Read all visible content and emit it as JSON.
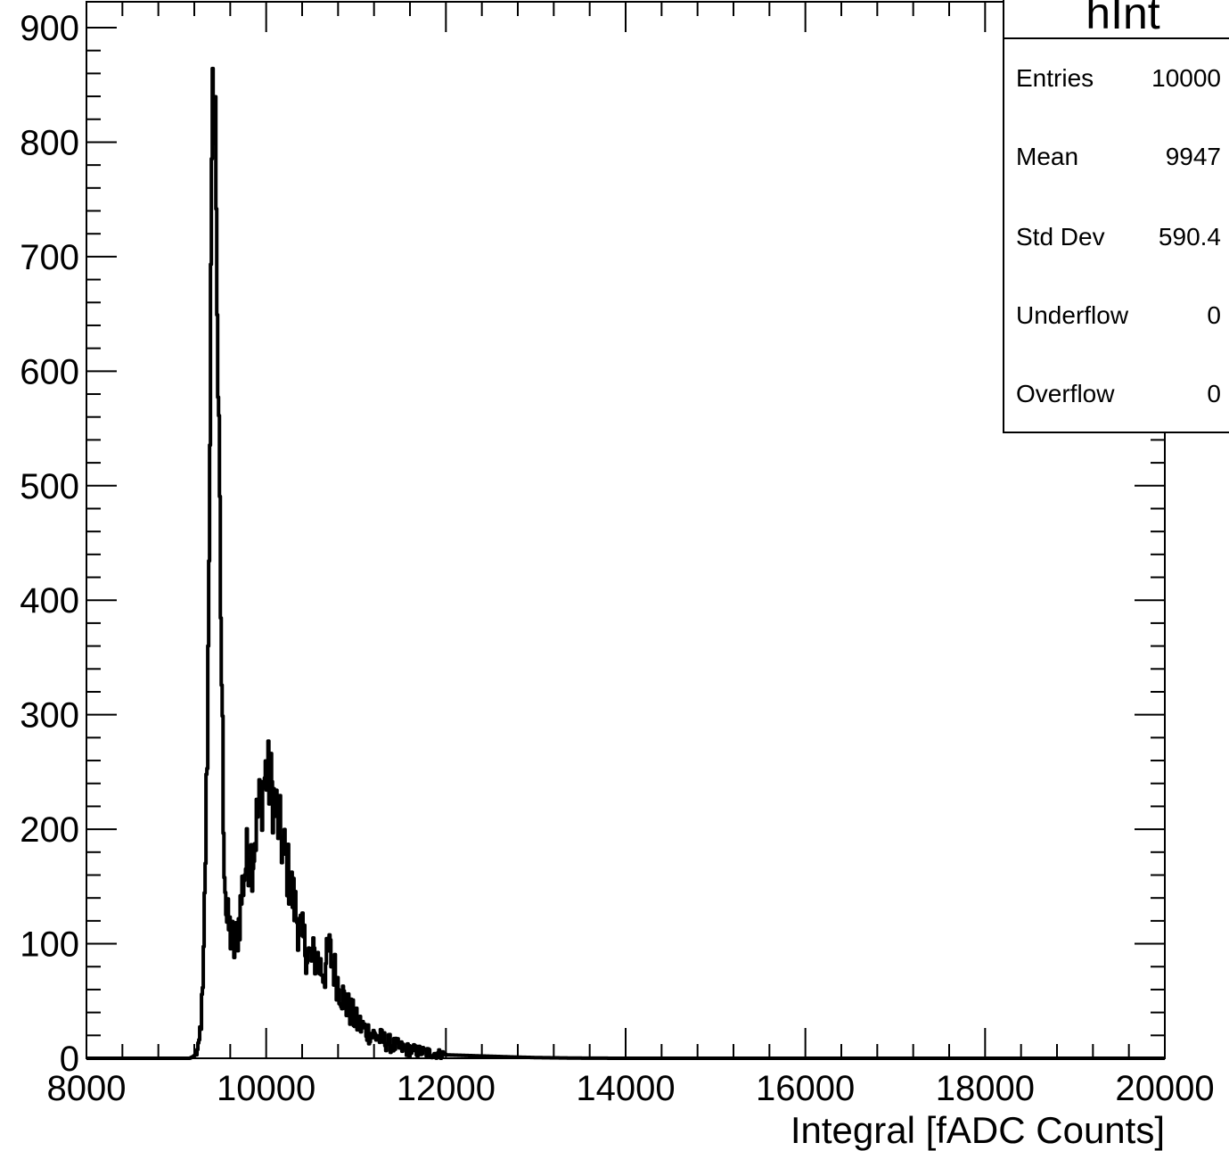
{
  "chart_data": {
    "type": "histogram",
    "title": "",
    "xlabel": "Integral [fADC Counts]",
    "ylabel": "",
    "xlim": [
      8000,
      20000
    ],
    "ylim": [
      0,
      920
    ],
    "x_ticks": [
      "8000",
      "10000",
      "12000",
      "14000",
      "16000",
      "18000",
      "20000"
    ],
    "y_ticks": [
      "0",
      "100",
      "200",
      "300",
      "400",
      "500",
      "600",
      "700",
      "800",
      "900"
    ],
    "grid": false,
    "legend": "none",
    "line_color": "#000000",
    "series": [
      {
        "x": [
          9000,
          9150,
          9200,
          9250,
          9300,
          9350,
          9380,
          9410,
          9440,
          9470,
          9500,
          9530,
          9560,
          9600,
          9650,
          9700,
          9750,
          9800,
          9850,
          9900,
          9950,
          10000,
          10050,
          10100,
          10150,
          10200,
          10250,
          10300,
          10350,
          10400,
          10450,
          10500,
          10550,
          10600,
          10650,
          10700,
          10750,
          10800,
          10850,
          10900,
          10950,
          11000,
          11100,
          11200,
          11300,
          11400,
          11500,
          11600,
          11700,
          11800,
          11900,
          12000,
          12200,
          12400,
          12600,
          12800,
          13000,
          13200,
          13400,
          13600,
          14000,
          20000
        ],
        "y": [
          0,
          0,
          2,
          8,
          60,
          300,
          620,
          860,
          800,
          550,
          360,
          190,
          120,
          110,
          95,
          120,
          160,
          180,
          175,
          210,
          230,
          250,
          240,
          220,
          200,
          180,
          160,
          140,
          120,
          105,
          95,
          85,
          90,
          80,
          75,
          95,
          80,
          65,
          55,
          45,
          40,
          32,
          25,
          20,
          16,
          12,
          9,
          7,
          6,
          5,
          4,
          3,
          2.5,
          2,
          1.5,
          1,
          0.6,
          0.4,
          0.2,
          0.1,
          0,
          0
        ]
      }
    ]
  },
  "stats_box": {
    "title": "hInt",
    "rows": [
      {
        "label": "Entries",
        "value": "10000"
      },
      {
        "label": "Mean",
        "value": "9947"
      },
      {
        "label": "Std Dev",
        "value": "590.4"
      },
      {
        "label": "Underflow",
        "value": "0"
      },
      {
        "label": "Overflow",
        "value": "0"
      }
    ]
  }
}
